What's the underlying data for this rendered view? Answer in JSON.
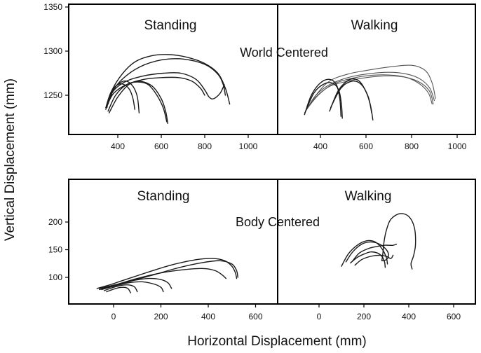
{
  "chart_data": [
    {
      "type": "line",
      "title": "World Centered",
      "xlabel": "Horizontal Displacement (mm)",
      "ylabel": "Vertical Displacement (mm)",
      "ylim": [
        1180,
        1360
      ],
      "yticks": [
        "1250",
        "1300",
        "1350"
      ],
      "panels": [
        {
          "label": "Standing",
          "xlim": [
            250,
            1100
          ],
          "xticks": [
            "400",
            "600",
            "800",
            "1000"
          ],
          "series": [
            {
              "x": [
                350,
                370,
                420,
                480,
                560,
                640,
                720,
                800,
                860,
                895,
                915
              ],
              "y": [
                1236,
                1254,
                1274,
                1288,
                1295,
                1296,
                1293,
                1286,
                1275,
                1258,
                1240
              ]
            },
            {
              "x": [
                345,
                365,
                420,
                500,
                600,
                700,
                800,
                860,
                885,
                895
              ],
              "y": [
                1234,
                1250,
                1268,
                1282,
                1290,
                1291,
                1285,
                1274,
                1262,
                1250
              ]
            },
            {
              "x": [
                355,
                380,
                440,
                520,
                610,
                690,
                760,
                800,
                820,
                840,
                870,
                890
              ],
              "y": [
                1240,
                1255,
                1266,
                1272,
                1275,
                1275,
                1268,
                1256,
                1248,
                1246,
                1252,
                1262
              ]
            },
            {
              "x": [
                350,
                380,
                440,
                520,
                600,
                680,
                740,
                780,
                800
              ],
              "y": [
                1238,
                1252,
                1262,
                1268,
                1270,
                1270,
                1266,
                1258,
                1250
              ]
            },
            {
              "x": [
                355,
                390,
                440,
                490,
                540,
                580,
                610,
                625
              ],
              "y": [
                1232,
                1250,
                1262,
                1265,
                1262,
                1250,
                1235,
                1220
              ]
            },
            {
              "x": [
                360,
                400,
                450,
                500,
                560,
                600,
                620,
                630
              ],
              "y": [
                1230,
                1248,
                1262,
                1266,
                1260,
                1246,
                1232,
                1218
              ]
            },
            {
              "x": [
                345,
                370,
                410,
                440,
                470,
                490,
                498
              ],
              "y": [
                1236,
                1254,
                1264,
                1266,
                1260,
                1248,
                1230
              ]
            },
            {
              "x": [
                350,
                370,
                400,
                430,
                455,
                470,
                478
              ],
              "y": [
                1238,
                1254,
                1262,
                1262,
                1256,
                1246,
                1234
              ]
            }
          ]
        },
        {
          "label": "Walking",
          "xlim": [
            250,
            1100
          ],
          "xticks": [
            "400",
            "600",
            "800",
            "1000"
          ],
          "series": [
            {
              "x": [
                330,
                380,
                440,
                520,
                600,
                700,
                800,
                860,
                890,
                905
              ],
              "y": [
                1230,
                1250,
                1266,
                1274,
                1278,
                1282,
                1284,
                1278,
                1264,
                1246
              ]
            },
            {
              "x": [
                335,
                380,
                440,
                520,
                600,
                700,
                780,
                840,
                880,
                900
              ],
              "y": [
                1232,
                1250,
                1262,
                1270,
                1274,
                1276,
                1274,
                1268,
                1258,
                1244
              ]
            },
            {
              "x": [
                340,
                380,
                440,
                520,
                600,
                700,
                780,
                840,
                880,
                895
              ],
              "y": [
                1234,
                1248,
                1260,
                1266,
                1270,
                1272,
                1270,
                1264,
                1254,
                1240
              ]
            },
            {
              "x": [
                345,
                390,
                450,
                520,
                600,
                700,
                780,
                840,
                875,
                890
              ],
              "y": [
                1236,
                1250,
                1262,
                1268,
                1272,
                1273,
                1270,
                1262,
                1252,
                1240
              ]
            },
            {
              "x": [
                330,
                360,
                400,
                440,
                470,
                485,
                490
              ],
              "y": [
                1228,
                1250,
                1264,
                1268,
                1262,
                1246,
                1226
              ]
            },
            {
              "x": [
                335,
                370,
                410,
                450,
                480,
                492,
                496
              ],
              "y": [
                1232,
                1252,
                1262,
                1264,
                1256,
                1240,
                1224
              ]
            },
            {
              "x": [
                440,
                480,
                530,
                570,
                600,
                620,
                630
              ],
              "y": [
                1232,
                1256,
                1268,
                1266,
                1254,
                1238,
                1222
              ]
            },
            {
              "x": [
                445,
                490,
                540,
                580,
                610,
                625
              ],
              "y": [
                1236,
                1258,
                1266,
                1262,
                1248,
                1230
              ]
            }
          ]
        }
      ]
    },
    {
      "type": "line",
      "title": "Body Centered",
      "xlabel": "Horizontal Displacement (mm)",
      "ylabel": "Vertical Displacement (mm)",
      "ylim": [
        50,
        250
      ],
      "yticks": [
        "100",
        "150",
        "200"
      ],
      "panels": [
        {
          "label": "Standing",
          "xlim": [
            -120,
            720
          ],
          "xticks": [
            "0",
            "200",
            "400",
            "600"
          ],
          "series": [
            {
              "x": [
                -70,
                -20,
                50,
                150,
                250,
                350,
                420,
                470,
                500,
                515,
                520
              ],
              "y": [
                80,
                86,
                96,
                110,
                123,
                132,
                134,
                130,
                120,
                108,
                98
              ]
            },
            {
              "x": [
                -60,
                0,
                80,
                180,
                280,
                380,
                450,
                500,
                520,
                525
              ],
              "y": [
                78,
                84,
                94,
                106,
                118,
                127,
                130,
                124,
                112,
                100
              ]
            },
            {
              "x": [
                -50,
                20,
                100,
                200,
                300,
                380,
                430,
                460,
                475
              ],
              "y": [
                80,
                88,
                98,
                108,
                114,
                116,
                112,
                104,
                98
              ]
            },
            {
              "x": [
                -60,
                0,
                80,
                150,
                200,
                230,
                245
              ],
              "y": [
                80,
                86,
                94,
                98,
                96,
                90,
                80
              ]
            },
            {
              "x": [
                -50,
                0,
                60,
                120,
                170,
                200,
                210
              ],
              "y": [
                78,
                84,
                90,
                92,
                88,
                82,
                74
              ]
            },
            {
              "x": [
                -40,
                0,
                40,
                70,
                90,
                100
              ],
              "y": [
                76,
                82,
                86,
                86,
                82,
                74
              ]
            },
            {
              "x": [
                -30,
                10,
                40,
                60,
                72
              ],
              "y": [
                74,
                80,
                82,
                80,
                72
              ]
            }
          ]
        },
        {
          "label": "Walking",
          "xlim": [
            -120,
            720
          ],
          "xticks": [
            "0",
            "200",
            "400",
            "600"
          ],
          "series": [
            {
              "x": [
                100,
                130,
                170,
                210,
                250,
                280,
                300,
                305
              ],
              "y": [
                120,
                142,
                158,
                166,
                164,
                152,
                136,
                124
              ]
            },
            {
              "x": [
                120,
                150,
                190,
                230,
                270,
                300,
                310,
                300,
                280
              ],
              "y": [
                128,
                146,
                160,
                164,
                160,
                150,
                140,
                132,
                130
              ]
            },
            {
              "x": [
                150,
                180,
                220,
                260,
                290,
                310,
                330,
                345
              ],
              "y": [
                130,
                144,
                152,
                156,
                158,
                158,
                158,
                160
              ]
            },
            {
              "x": [
                160,
                190,
                230,
                270,
                300,
                320,
                330
              ],
              "y": [
                122,
                132,
                138,
                140,
                138,
                134,
                140
              ]
            },
            {
              "x": [
                140,
                170,
                200,
                230,
                260,
                280,
                292,
                295
              ],
              "y": [
                126,
                136,
                142,
                146,
                144,
                138,
                128,
                118
              ]
            },
            {
              "x": [
                280,
                285,
                290,
                300,
                320,
                360,
                400,
                425,
                430,
                422,
                410,
                415
              ],
              "y": [
                130,
                145,
                165,
                185,
                205,
                215,
                210,
                190,
                160,
                140,
                125,
                115
              ]
            }
          ]
        }
      ]
    }
  ],
  "labels": {
    "top_left_panel": "Standing",
    "top_right_panel": "Walking",
    "top_center": "World Centered",
    "bottom_left_panel": "Standing",
    "bottom_right_panel": "Walking",
    "bottom_center": "Body Centered",
    "y_axis_title": "Vertical Displacement (mm)",
    "x_axis_title": "Horizontal Displacement (mm)"
  }
}
